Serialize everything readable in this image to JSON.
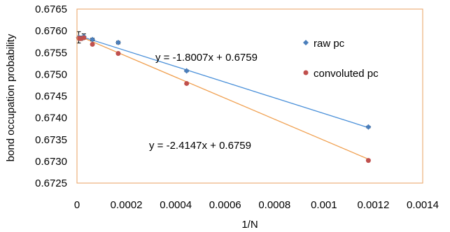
{
  "chart_data": {
    "type": "scatter",
    "xlabel": "1/N",
    "ylabel": "bond occupation probability",
    "xlim": [
      0,
      0.0014
    ],
    "ylim": [
      0.6725,
      0.6765
    ],
    "x_ticks": [
      "0",
      "0.0002",
      "0.0004",
      "0.0006",
      "0.0008",
      "0.001",
      "0.0012",
      "0.0014"
    ],
    "y_ticks": [
      "0.6725",
      "0.6730",
      "0.6735",
      "0.6740",
      "0.6745",
      "0.6750",
      "0.6755",
      "0.6760",
      "0.6765"
    ],
    "plot_border_color": "#e8a060",
    "grid": false,
    "legend_position": "top-right",
    "series": [
      {
        "name": "raw pc",
        "color": "#4a7ebb",
        "marker": "diamond",
        "x": [
          6.9e-06,
          1.56e-05,
          2.78e-05,
          6.25e-05,
          0.000167,
          0.000444,
          0.00118
        ],
        "y": [
          0.67585,
          0.67583,
          0.67587,
          0.6758,
          0.67573,
          0.67508,
          0.67379
        ],
        "yerr": [
          0.00013,
          5e-05,
          6e-05,
          3e-05,
          3e-05,
          2e-05,
          2e-05
        ],
        "trendline": {
          "slope": -1.8007,
          "intercept": 0.6759,
          "color": "#4a90d9",
          "equation": "y = -1.8007x + 0.6759"
        }
      },
      {
        "name": "convoluted pc",
        "color": "#c0504d",
        "marker": "circle",
        "x": [
          6.9e-06,
          1.56e-05,
          2.78e-05,
          6.25e-05,
          0.000167,
          0.000444,
          0.00118
        ],
        "y": [
          0.67583,
          0.67582,
          0.67584,
          0.67569,
          0.67548,
          0.67479,
          0.67302
        ],
        "trendline": {
          "slope": -2.4147,
          "intercept": 0.6759,
          "color": "#f0a050",
          "equation": "y = -2.4147x + 0.6759"
        }
      }
    ]
  }
}
